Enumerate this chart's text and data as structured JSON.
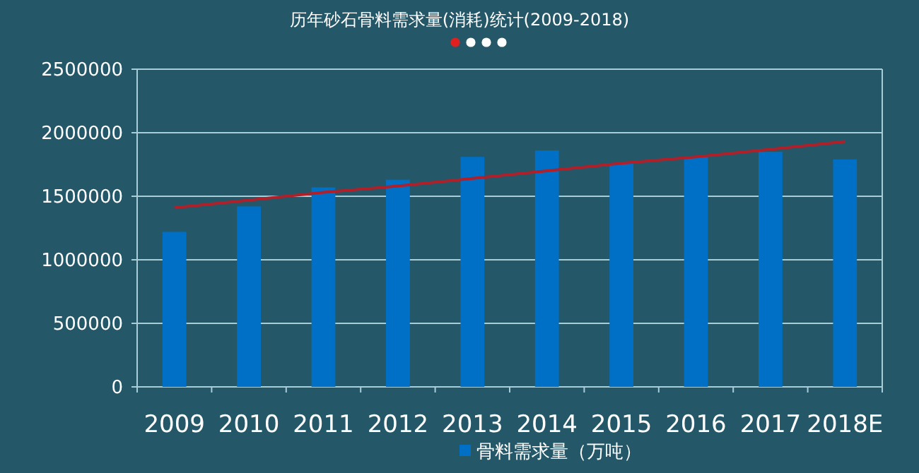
{
  "chart_data": {
    "type": "bar",
    "title": "历年砂石骨料需求量(消耗)统计(2009-2018)",
    "categories": [
      "2009",
      "2010",
      "2011",
      "2012",
      "2013",
      "2014",
      "2015",
      "2016",
      "2017",
      "2018E"
    ],
    "series": [
      {
        "name": "骨料需求量（万吨）",
        "color": "#0070c6",
        "values": [
          1220000,
          1420000,
          1570000,
          1630000,
          1810000,
          1860000,
          1760000,
          1810000,
          1850000,
          1790000
        ]
      },
      {
        "type": "line",
        "color": "#b0202a",
        "values": [
          1410000,
          1470000,
          1530000,
          1580000,
          1640000,
          1700000,
          1760000,
          1810000,
          1870000,
          1930000
        ]
      }
    ],
    "ylim": [
      0,
      2500000
    ],
    "yticks": [
      0,
      500000,
      1000000,
      1500000,
      2000000,
      2500000
    ],
    "grid": "y",
    "legend": "bottom"
  }
}
